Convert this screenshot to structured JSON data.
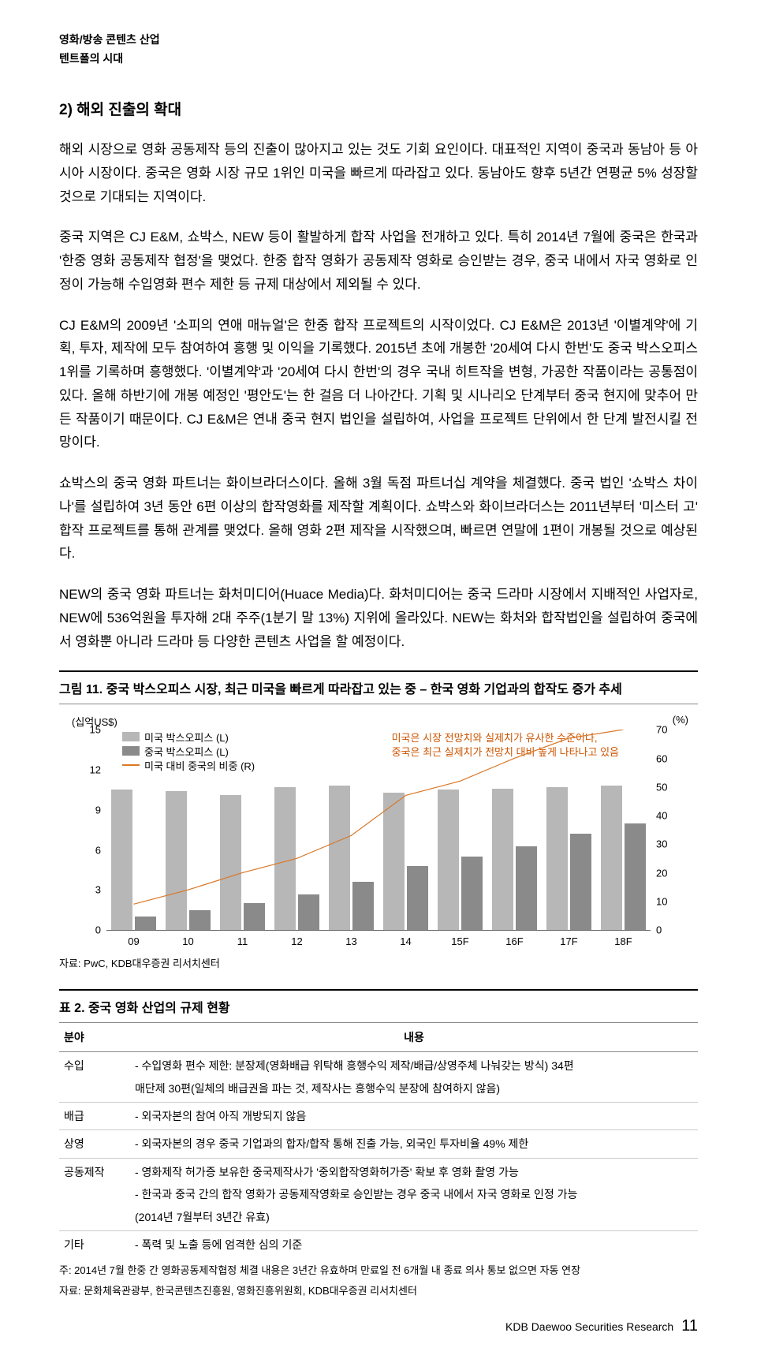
{
  "header": {
    "cat": "영화/방송 콘텐츠 산업",
    "sub": "텐트폴의 시대"
  },
  "section": {
    "title": "2) 해외 진출의 확대"
  },
  "paras": [
    "해외 시장으로 영화 공동제작 등의 진출이 많아지고 있는 것도 기회 요인이다. 대표적인 지역이 중국과 동남아 등 아시아 시장이다. 중국은 영화 시장 규모 1위인 미국을 빠르게 따라잡고 있다. 동남아도 향후 5년간 연평균 5% 성장할 것으로 기대되는 지역이다.",
    "중국 지역은 CJ E&M, 쇼박스, NEW 등이 활발하게 합작 사업을 전개하고 있다. 특히 2014년 7월에 중국은 한국과 '한중 영화 공동제작 협정'을 맺었다. 한중 합작 영화가 공동제작 영화로 승인받는 경우, 중국 내에서 자국 영화로 인정이 가능해 수입영화 편수 제한 등 규제 대상에서 제외될 수 있다.",
    "CJ E&M의 2009년 '소피의 연애 매뉴얼'은 한중 합작 프로젝트의 시작이었다. CJ E&M은 2013년 '이별계약'에 기획, 투자, 제작에 모두 참여하여 흥행 및 이익을 기록했다. 2015년 초에 개봉한 '20세여 다시 한번'도 중국 박스오피스 1위를 기록하며 흥행했다. '이별계약'과 '20세여 다시 한번'의 경우 국내 히트작을 변형, 가공한 작품이라는 공통점이 있다. 올해 하반기에 개봉 예정인 '평안도'는 한 걸음 더 나아간다. 기획 및 시나리오 단계부터 중국 현지에 맞추어 만든 작품이기 때문이다. CJ E&M은 연내 중국 현지 법인을 설립하여, 사업을 프로젝트 단위에서 한 단계 발전시킬 전망이다.",
    "쇼박스의 중국 영화 파트너는 화이브라더스이다. 올해 3월 독점 파트너십 계약을 체결했다. 중국 법인 '쇼박스 차이나'를 설립하여 3년 동안 6편 이상의 합작영화를 제작할 계획이다. 쇼박스와 화이브라더스는 2011년부터 '미스터 고' 합작 프로젝트를 통해 관계를 맺었다. 올해 영화 2편 제작을 시작했으며, 빠르면 연말에 1편이 개봉될 것으로 예상된다.",
    "NEW의 중국 영화 파트너는 화처미디어(Huace Media)다. 화처미디어는 중국 드라마 시장에서 지배적인 사업자로, NEW에 536억원을 투자해 2대 주주(1분기 말 13%) 지위에 올라있다. NEW는 화처와 합작법인을 설립하여 중국에서 영화뿐 아니라 드라마 등 다양한 콘텐츠 사업을 할 예정이다."
  ],
  "chart": {
    "title": "그림 11. 중국 박스오피스 시장, 최근 미국을 빠르게 따라잡고 있는 중 – 한국 영화 기업과의 합작도 증가 추세",
    "ylabel_l": "(십억US$)",
    "ylabel_r": "(%)",
    "left_max": 15,
    "right_max": 70,
    "left_ticks": [
      0,
      3,
      6,
      9,
      12,
      15
    ],
    "right_ticks": [
      0,
      10,
      20,
      30,
      40,
      50,
      60,
      70
    ],
    "categories": [
      "09",
      "10",
      "11",
      "12",
      "13",
      "14",
      "15F",
      "16F",
      "17F",
      "18F"
    ],
    "us": [
      10.5,
      10.4,
      10.1,
      10.7,
      10.8,
      10.3,
      10.5,
      10.6,
      10.7,
      10.8
    ],
    "cn": [
      1.0,
      1.5,
      2.0,
      2.7,
      3.6,
      4.8,
      5.5,
      6.3,
      7.2,
      8.0
    ],
    "ratio": [
      9,
      14,
      20,
      25,
      33,
      47,
      52,
      60,
      67,
      74
    ],
    "ratio_display": [
      9,
      14,
      20,
      25,
      33,
      47,
      52,
      60,
      67,
      70
    ],
    "colors": {
      "us": "#b7b7b7",
      "cn": "#8a8a8a",
      "line": "#d97828",
      "grid": "#e0e0e0"
    },
    "legend": {
      "us": "미국 박스오피스 (L)",
      "cn": "중국 박스오피스 (L)",
      "line": "미국 대비 중국의 비중 (R)"
    },
    "note1": "미국은 시장 전망치와 실제치가 유사한 수준이나,",
    "note2": "중국은 최근 실제치가 전망치 대비 높게 나타나고 있음",
    "source": "자료: PwC, KDB대우증권 리서치센터"
  },
  "table": {
    "title": "표 2. 중국 영화 산업의 규제 현황",
    "head1": "분야",
    "head2": "내용",
    "rows": [
      {
        "cat": "수입",
        "lines": [
          "- 수입영화 편수 제한: 분장제(영화배급 위탁해 흥행수익 제작/배급/상영주체 나눠갖는 방식) 34편",
          "매단제 30편(일체의 배급권을 파는 것, 제작사는 흥행수익 분장에 참여하지 않음)"
        ]
      },
      {
        "cat": "배급",
        "lines": [
          "- 외국자본의 참여 아직 개방되지 않음"
        ]
      },
      {
        "cat": "상영",
        "lines": [
          "- 외국자본의 경우 중국 기업과의 합자/합작 통해 진출 가능, 외국인 투자비율 49% 제한"
        ]
      },
      {
        "cat": "공동제작",
        "lines": [
          "- 영화제작 허가증 보유한 중국제작사가 '중외합작영화허가증' 확보 후 영화 촬영 가능",
          "- 한국과 중국 간의 합작 영화가 공동제작영화로 승인받는 경우 중국 내에서 자국 영화로 인정 가능",
          "(2014년 7월부터 3년간 유효)"
        ]
      },
      {
        "cat": "기타",
        "lines": [
          "- 폭력 및 노출 등에 엄격한 심의 기준"
        ]
      }
    ],
    "note1": "주: 2014년 7월 한중 간 영화공동제작협정 체결 내용은 3년간 유효하며 만료일 전 6개월 내 종료 의사 통보 없으면 자동 연장",
    "note2": "자료: 문화체육관광부, 한국콘텐츠진흥원, 영화진흥위원회, KDB대우증권 리서치센터"
  },
  "footer": {
    "brand": "KDB Daewoo Securities Research",
    "page": "11"
  }
}
